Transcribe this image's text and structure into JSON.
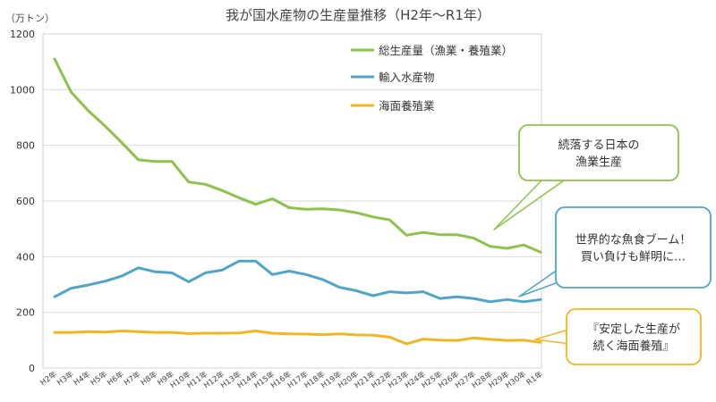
{
  "chart_data": {
    "type": "line",
    "title": "我が国水産物の生産量推移（H2年～R1年）",
    "ylabel": "（万トン）",
    "ylim": [
      0,
      1200
    ],
    "yticks": [
      0,
      200,
      400,
      600,
      800,
      1000,
      1200
    ],
    "grid": true,
    "legend_position": "top-right",
    "categories": [
      "H2年",
      "H3年",
      "H4年",
      "H5年",
      "H6年",
      "H7年",
      "H8年",
      "H9年",
      "H10年",
      "H11年",
      "H12年",
      "H13年",
      "H14年",
      "H15年",
      "H16年",
      "H17年",
      "H18年",
      "H19年",
      "H20年",
      "H21年",
      "H22年",
      "H23年",
      "H24年",
      "H25年",
      "H26年",
      "H27年",
      "H28年",
      "H29年",
      "H30年",
      "R1年"
    ],
    "series": [
      {
        "name": "総生産量（漁業・養殖業）",
        "color": "#8dc34a",
        "values": [
          1110,
          990,
          925,
          870,
          810,
          748,
          742,
          742,
          668,
          660,
          638,
          612,
          588,
          608,
          576,
          570,
          572,
          568,
          558,
          543,
          532,
          477,
          487,
          479,
          479,
          467,
          437,
          430,
          442,
          416
        ]
      },
      {
        "name": "輸入水産物",
        "color": "#4ea5c5",
        "values": [
          256,
          287,
          298,
          312,
          330,
          360,
          346,
          342,
          310,
          342,
          352,
          384,
          384,
          336,
          348,
          336,
          318,
          290,
          278,
          260,
          274,
          270,
          274,
          250,
          256,
          250,
          238,
          246,
          238,
          246
        ]
      },
      {
        "name": "海面養殖業",
        "color": "#f2b71f",
        "values": [
          128,
          128,
          131,
          129,
          133,
          131,
          128,
          128,
          124,
          125,
          125,
          126,
          133,
          125,
          123,
          122,
          120,
          123,
          119,
          118,
          111,
          87,
          104,
          100,
          99,
          108,
          103,
          99,
          100,
          92
        ]
      }
    ],
    "annotations": [
      {
        "text": [
          "続落する日本の",
          "漁業生産"
        ],
        "color": "#8dc34a"
      },
      {
        "text": [
          "世界的な魚食ブーム！",
          "買い負けも鮮明に…"
        ],
        "color": "#4ea5c5"
      },
      {
        "text": [
          "『安定した生産が",
          "続く海面養殖』"
        ],
        "color": "#f2b71f"
      }
    ]
  }
}
